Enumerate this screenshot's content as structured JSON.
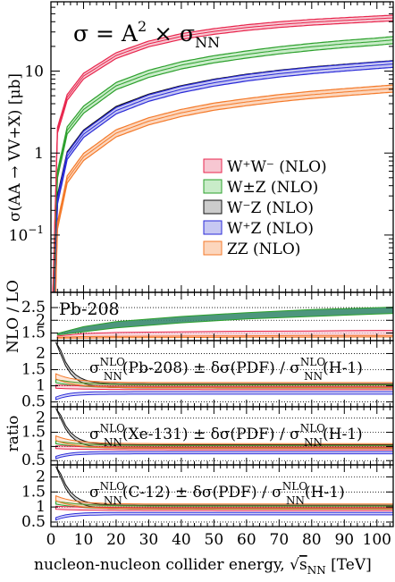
{
  "chart_data": {
    "type": "line",
    "x_range": [
      0,
      105
    ],
    "xlabel": "nucleon-nucleon collider energy,",
    "xlabel_sqrt": "s",
    "xlabel_sqrt_sub": "NN",
    "xlabel_unit": "[TeV]",
    "x_ticks": [
      "0",
      "10",
      "20",
      "30",
      "40",
      "50",
      "60",
      "70",
      "80",
      "90",
      "100"
    ],
    "main_panel": {
      "title_sigma": "σ = A",
      "title_sup": "2",
      "title_rest": "× σ",
      "title_sub": "NN",
      "ylabel": "σ(AA → VV+X) [μb]",
      "y_scale": "log",
      "y_range": [
        0.02,
        70
      ],
      "y_ticks": [
        "10⁻¹",
        "1",
        "10"
      ],
      "legend": [
        {
          "name": "W⁺W⁻ (NLO)",
          "color": "#e8264d",
          "fill": "#f7c7d2"
        },
        {
          "name": "W±Z (NLO)",
          "color": "#2ca02c",
          "fill": "#c9ecc9"
        },
        {
          "name": "W⁻Z (NLO)",
          "color": "#111111",
          "fill": "#cccccc"
        },
        {
          "name": "W⁺Z (NLO)",
          "color": "#2a2ad8",
          "fill": "#c7c8f2"
        },
        {
          "name": "ZZ (NLO)",
          "color": "#f47a2a",
          "fill": "#fcd6bd"
        }
      ],
      "series": [
        {
          "name": "W⁺W⁻ (NLO)",
          "x": [
            2,
            5,
            10,
            20,
            30,
            40,
            50,
            60,
            70,
            80,
            90,
            100,
            105
          ],
          "values": [
            1.9,
            4.8,
            8.7,
            15.5,
            21.5,
            26.5,
            30.5,
            34,
            37,
            39.5,
            41.5,
            43.5,
            44.5
          ],
          "band": 0.08
        },
        {
          "name": "W±Z (NLO)",
          "x": [
            2,
            5,
            10,
            20,
            30,
            40,
            50,
            60,
            70,
            80,
            90,
            100,
            105
          ],
          "values": [
            0.55,
            1.9,
            3.4,
            6.6,
            9.3,
            11.8,
            14,
            16,
            18,
            19.8,
            21.5,
            23,
            24
          ],
          "band": 0.1
        },
        {
          "name": "W⁻Z (NLO)",
          "x": [
            2,
            5,
            10,
            20,
            30,
            40,
            50,
            60,
            70,
            80,
            90,
            100,
            105
          ],
          "values": [
            0.28,
            0.95,
            1.75,
            3.4,
            4.8,
            6.1,
            7.3,
            8.4,
            9.4,
            10.3,
            11.1,
            11.9,
            12.3
          ],
          "band": 0.09
        },
        {
          "name": "W⁺Z (NLO)",
          "x": [
            2,
            5,
            10,
            20,
            30,
            40,
            50,
            60,
            70,
            80,
            90,
            100,
            105
          ],
          "values": [
            0.26,
            0.92,
            1.7,
            3.3,
            4.7,
            6,
            7.2,
            8.3,
            9.3,
            10.2,
            11,
            11.8,
            12.2
          ],
          "band": 0.09
        },
        {
          "name": "ZZ (NLO)",
          "x": [
            2,
            5,
            10,
            20,
            30,
            40,
            50,
            60,
            70,
            80,
            90,
            100,
            105
          ],
          "values": [
            0.13,
            0.48,
            0.9,
            1.75,
            2.45,
            3.1,
            3.7,
            4.2,
            4.7,
            5.15,
            5.55,
            5.95,
            6.15
          ],
          "band": 0.1
        }
      ]
    },
    "kfactor_panel": {
      "ylabel": "NLO / LO",
      "label": "Pb-208",
      "y_range": [
        1.2,
        3.1
      ],
      "y_ticks": [
        "1.5",
        "2",
        "2.5"
      ],
      "dotted": [
        1.5,
        2,
        2.5
      ],
      "series": [
        {
          "name": "W±Z (NLO)",
          "x": [
            2,
            10,
            20,
            40,
            60,
            80,
            100,
            105
          ],
          "lo": [
            1.42,
            1.55,
            1.7,
            1.9,
            2.05,
            2.15,
            2.25,
            2.27
          ],
          "hi": [
            1.48,
            1.75,
            1.95,
            2.15,
            2.3,
            2.42,
            2.5,
            2.52
          ]
        },
        {
          "name": "W⁺W⁻ (NLO)",
          "x": [
            2,
            10,
            20,
            40,
            60,
            80,
            100,
            105
          ],
          "lo": [
            1.32,
            1.33,
            1.34,
            1.35,
            1.36,
            1.37,
            1.38,
            1.38
          ],
          "hi": [
            1.38,
            1.48,
            1.52,
            1.55,
            1.57,
            1.58,
            1.6,
            1.6
          ]
        },
        {
          "name": "ZZ (NLO)",
          "x": [
            2,
            10,
            20,
            40,
            60,
            80,
            100,
            105
          ],
          "lo": [
            1.3,
            1.3,
            1.31,
            1.32,
            1.33,
            1.33,
            1.34,
            1.34
          ],
          "hi": [
            1.33,
            1.36,
            1.37,
            1.38,
            1.39,
            1.4,
            1.4,
            1.4
          ]
        }
      ]
    },
    "ratio_ylabel": "ratio",
    "ratio_panels": [
      {
        "label_a": "σ",
        "label_sup": "NLO",
        "label_sub": "NN",
        "label_mid": "(Pb-208) ± δσ(PDF) / σ",
        "label_sup2": "NLO",
        "label_sub2": "NN",
        "label_end": "(H-1)",
        "y_range": [
          0.35,
          2.4
        ],
        "y_ticks": [
          "0.5",
          "1",
          "1.5",
          "2"
        ]
      },
      {
        "label_a": "σ",
        "label_sup": "NLO",
        "label_sub": "NN",
        "label_mid": "(Xe-131) ± δσ(PDF) / σ",
        "label_sup2": "NLO",
        "label_sub2": "NN",
        "label_end": "(H-1)",
        "y_range": [
          0.35,
          2.4
        ],
        "y_ticks": [
          "0.5",
          "1",
          "1.5",
          "2"
        ]
      },
      {
        "label_a": "σ",
        "label_sup": "NLO",
        "label_sub": "NN",
        "label_mid": "(C-12) ± δσ(PDF) / σ",
        "label_sup2": "NLO",
        "label_sub2": "NN",
        "label_end": "(H-1)",
        "y_range": [
          0.35,
          2.4
        ],
        "y_ticks": [
          "0.5",
          "1",
          "1.5",
          "2"
        ]
      }
    ]
  }
}
